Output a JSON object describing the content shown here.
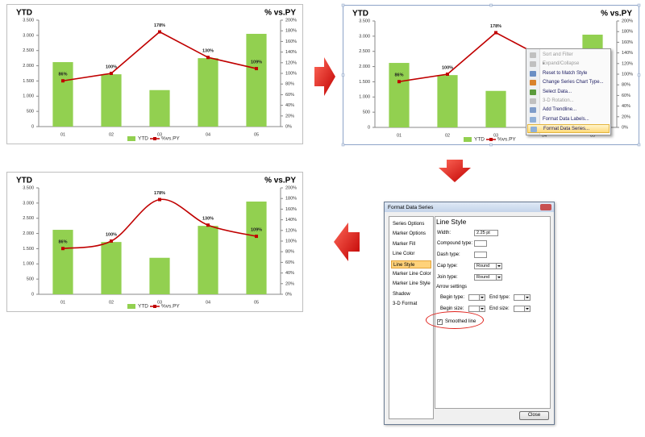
{
  "chart_data": [
    {
      "type": "combo",
      "title": "YTD",
      "y2_title": "% vs.PY",
      "categories": [
        "01",
        "02",
        "03",
        "04",
        "05"
      ],
      "series": [
        {
          "name": "YTD",
          "type": "bar",
          "color": "#92d050",
          "values": [
            2120,
            1720,
            1200,
            2250,
            3050
          ]
        },
        {
          "name": "%vs.PY",
          "type": "line",
          "axis": "y2",
          "color": "#c00000",
          "smooth": false,
          "values": [
            86,
            100,
            178,
            130,
            109
          ],
          "value_labels": [
            "86%",
            "100%",
            "178%",
            "130%",
            "109%"
          ]
        }
      ],
      "ylim": [
        0,
        3500
      ],
      "yticks": [
        0,
        500,
        {
          "value": 1000,
          "label": "1.000"
        },
        {
          "value": 1500,
          "label": "1.500"
        },
        {
          "value": 2000,
          "label": "2.000"
        },
        {
          "value": 2500,
          "label": "2.500"
        },
        {
          "value": 3000,
          "label": "3.000"
        },
        {
          "value": 3500,
          "label": "3.500"
        }
      ],
      "y2lim": [
        0,
        200
      ],
      "y2ticks": [
        {
          "value": 0,
          "label": "0%"
        },
        {
          "value": 20,
          "label": "20%"
        },
        {
          "value": 40,
          "label": "40%"
        },
        {
          "value": 60,
          "label": "60%"
        },
        {
          "value": 80,
          "label": "80%"
        },
        {
          "value": 100,
          "label": "100%"
        },
        {
          "value": 120,
          "label": "120%"
        },
        {
          "value": 140,
          "label": "140%"
        },
        {
          "value": 160,
          "label": "160%"
        },
        {
          "value": 180,
          "label": "180%"
        },
        {
          "value": 200,
          "label": "200%"
        }
      ],
      "grid": false,
      "legend": "bottom"
    },
    {
      "type": "combo",
      "title": "YTD",
      "y2_title": "% vs.PY",
      "categories": [
        "01",
        "02",
        "03",
        "04",
        "05"
      ],
      "series": [
        {
          "name": "YTD",
          "type": "bar",
          "color": "#92d050",
          "values": [
            2120,
            1720,
            1200,
            2250,
            3050
          ]
        },
        {
          "name": "%vs.PY",
          "type": "line",
          "axis": "y2",
          "color": "#c00000",
          "smooth": false,
          "values": [
            86,
            100,
            178,
            130,
            109
          ],
          "value_labels": [
            "86%",
            "100%",
            "178%",
            "130%",
            "109%"
          ]
        }
      ],
      "ylim": [
        0,
        3500
      ],
      "yticks": [
        0,
        500,
        {
          "value": 1000,
          "label": "1.000"
        },
        {
          "value": 1500,
          "label": "1.500"
        },
        {
          "value": 2000,
          "label": "2.000"
        },
        {
          "value": 2500,
          "label": "2.500"
        },
        {
          "value": 3000,
          "label": "3.000"
        },
        {
          "value": 3500,
          "label": "3.500"
        }
      ],
      "y2lim": [
        0,
        200
      ],
      "y2ticks": [
        {
          "value": 0,
          "label": "0%"
        },
        {
          "value": 20,
          "label": "20%"
        },
        {
          "value": 40,
          "label": "40%"
        },
        {
          "value": 60,
          "label": "60%"
        },
        {
          "value": 80,
          "label": "80%"
        },
        {
          "value": 100,
          "label": "100%"
        },
        {
          "value": 120,
          "label": "120%"
        },
        {
          "value": 140,
          "label": "140%"
        },
        {
          "value": 160,
          "label": "160%"
        },
        {
          "value": 180,
          "label": "180%"
        },
        {
          "value": 200,
          "label": "200%"
        }
      ],
      "grid": false,
      "legend": "bottom",
      "selected": true
    },
    {
      "type": "combo",
      "title": "YTD",
      "y2_title": "% vs.PY",
      "categories": [
        "01",
        "02",
        "03",
        "04",
        "05"
      ],
      "series": [
        {
          "name": "YTD",
          "type": "bar",
          "color": "#92d050",
          "values": [
            2120,
            1720,
            1200,
            2250,
            3050
          ]
        },
        {
          "name": "%vs.PY",
          "type": "line",
          "axis": "y2",
          "color": "#c00000",
          "smooth": true,
          "values": [
            86,
            100,
            178,
            130,
            109
          ],
          "value_labels": [
            "86%",
            "100%",
            "178%",
            "130%",
            "109%"
          ]
        }
      ],
      "ylim": [
        0,
        3500
      ],
      "yticks": [
        0,
        500,
        {
          "value": 1000,
          "label": "1.000"
        },
        {
          "value": 1500,
          "label": "1.500"
        },
        {
          "value": 2000,
          "label": "2.000"
        },
        {
          "value": 2500,
          "label": "2.500"
        },
        {
          "value": 3000,
          "label": "3.000"
        },
        {
          "value": 3500,
          "label": "3.500"
        }
      ],
      "y2lim": [
        0,
        200
      ],
      "y2ticks": [
        {
          "value": 0,
          "label": "0%"
        },
        {
          "value": 20,
          "label": "20%"
        },
        {
          "value": 40,
          "label": "40%"
        },
        {
          "value": 60,
          "label": "60%"
        },
        {
          "value": 80,
          "label": "80%"
        },
        {
          "value": 100,
          "label": "100%"
        },
        {
          "value": 120,
          "label": "120%"
        },
        {
          "value": 140,
          "label": "140%"
        },
        {
          "value": 160,
          "label": "160%"
        },
        {
          "value": 180,
          "label": "180%"
        },
        {
          "value": 200,
          "label": "200%"
        }
      ],
      "grid": false,
      "legend": "bottom"
    }
  ],
  "context_menu": {
    "items": [
      {
        "label": "Sort and Filter",
        "disabled": true
      },
      {
        "label": "Expand/Collapse",
        "disabled": true,
        "submenu": true
      },
      {
        "label": "Reset to Match Style"
      },
      {
        "label": "Change Series Chart Type..."
      },
      {
        "label": "Select Data..."
      },
      {
        "label": "3-D Rotation...",
        "disabled": true
      },
      {
        "label": "Add Trendline..."
      },
      {
        "label": "Format Data Labels..."
      },
      {
        "label": "Format Data Series...",
        "highlighted": true
      }
    ]
  },
  "dialog": {
    "title": "Format Data Series",
    "categories": [
      "Series Options",
      "Marker Options",
      "Marker Fill",
      "Line Color",
      "Line Style",
      "Marker Line Color",
      "Marker Line Style",
      "Shadow",
      "3-D Format"
    ],
    "selected_index": 4,
    "section_title": "Line Style",
    "width": {
      "label": "Width:",
      "value": "2.25 pt"
    },
    "compound_type": {
      "label": "Compound type:"
    },
    "dash_type": {
      "label": "Dash type:"
    },
    "cap_type": {
      "label": "Cap type:",
      "value": "Round"
    },
    "join_type": {
      "label": "Join type:",
      "value": "Round"
    },
    "arrow_settings": {
      "title": "Arrow settings",
      "begin_type": "Begin type:",
      "end_type": "End type:",
      "begin_size": "Begin size:",
      "end_size": "End size:"
    },
    "smoothed_line": {
      "label": "Smoothed line",
      "checked": true
    },
    "close": "Close"
  }
}
